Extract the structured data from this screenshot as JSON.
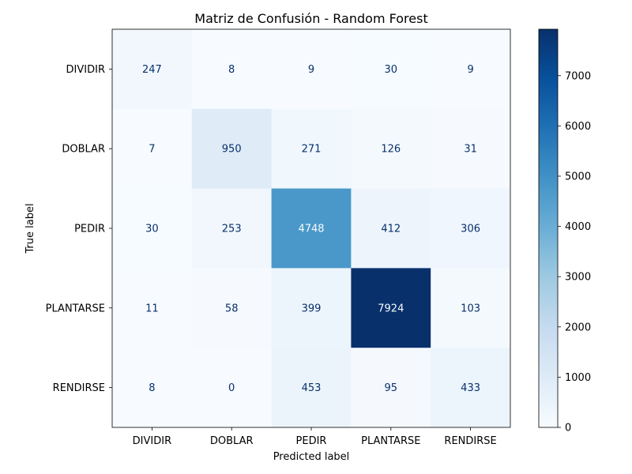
{
  "chart_data": {
    "type": "heatmap",
    "title": "Matriz de Confusión - Random Forest",
    "xlabel": "Predicted label",
    "ylabel": "True label",
    "x_categories": [
      "DIVIDIR",
      "DOBLAR",
      "PEDIR",
      "PLANTARSE",
      "RENDIRSE"
    ],
    "y_categories": [
      "DIVIDIR",
      "DOBLAR",
      "PEDIR",
      "PLANTARSE",
      "RENDIRSE"
    ],
    "values": [
      [
        247,
        8,
        9,
        30,
        9
      ],
      [
        7,
        950,
        271,
        126,
        31
      ],
      [
        30,
        253,
        4748,
        412,
        306
      ],
      [
        11,
        58,
        399,
        7924,
        103
      ],
      [
        8,
        0,
        453,
        95,
        433
      ]
    ],
    "colormap": "Blues",
    "color_range": [
      0,
      7924
    ],
    "colorbar_ticks": [
      0,
      1000,
      2000,
      3000,
      4000,
      5000,
      6000,
      7000
    ],
    "colors": {
      "low": "#f7fbff",
      "high": "#08306b",
      "text_dark": "#08306b",
      "text_light": "#f7fbff"
    },
    "grid": false
  }
}
